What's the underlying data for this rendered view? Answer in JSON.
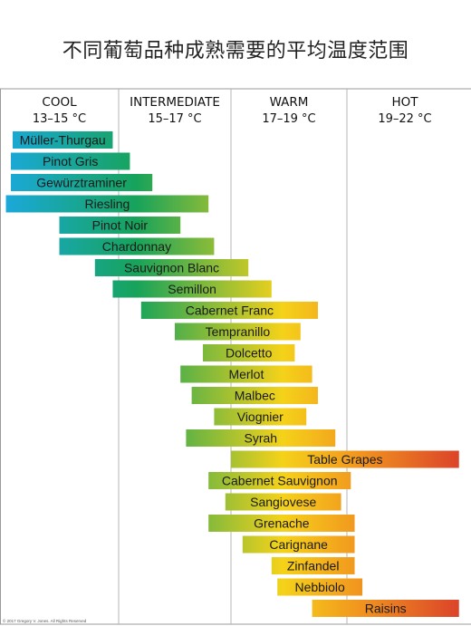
{
  "title": "不同葡萄品种成熟需要的平均温度范围",
  "copyright": "© 2017 Gregory V. Jones. All Rights Reserved",
  "chart_data": {
    "type": "bar",
    "orientation": "horizontal-range",
    "unit": "°C",
    "zones": [
      {
        "name": "COOL",
        "range_label": "13–15 °C",
        "from": 13,
        "to": 15
      },
      {
        "name": "INTERMEDIATE",
        "range_label": "15–17 °C",
        "from": 15,
        "to": 17
      },
      {
        "name": "WARM",
        "range_label": "17–19 °C",
        "from": 17,
        "to": 19
      },
      {
        "name": "HOT",
        "range_label": "19–22 °C",
        "from": 19,
        "to": 22
      }
    ],
    "xlim": [
      13,
      22
    ],
    "grid": "vertical lines at zone boundaries",
    "color_scale": [
      "#1aa9e0",
      "#17a35a",
      "#f5d21a",
      "#f29a1e",
      "#d93a2b"
    ],
    "varieties": [
      {
        "name": "Müller-Thurgau",
        "min": 13.0,
        "max": 14.9
      },
      {
        "name": "Pinot Gris",
        "min": 13.0,
        "max": 15.2
      },
      {
        "name": "Gewürztraminer",
        "min": 13.0,
        "max": 15.6
      },
      {
        "name": "Riesling",
        "min": 13.1,
        "max": 16.6
      },
      {
        "name": "Pinot Noir",
        "min": 14.0,
        "max": 16.1
      },
      {
        "name": "Chardonnay",
        "min": 14.0,
        "max": 16.7
      },
      {
        "name": "Sauvignon Blanc",
        "min": 14.6,
        "max": 17.3
      },
      {
        "name": "Semillon",
        "min": 14.9,
        "max": 17.7
      },
      {
        "name": "Cabernet Franc",
        "min": 15.4,
        "max": 18.5
      },
      {
        "name": "Tempranillo",
        "min": 16.0,
        "max": 18.2
      },
      {
        "name": "Dolcetto",
        "min": 16.5,
        "max": 18.1
      },
      {
        "name": "Merlot",
        "min": 16.1,
        "max": 18.4
      },
      {
        "name": "Malbec",
        "min": 16.3,
        "max": 18.5
      },
      {
        "name": "Viognier",
        "min": 16.7,
        "max": 18.3
      },
      {
        "name": "Syrah",
        "min": 16.2,
        "max": 18.8
      },
      {
        "name": "Table Grapes",
        "min": 17.0,
        "max": 21.9
      },
      {
        "name": "Cabernet Sauvignon",
        "min": 16.6,
        "max": 19.1
      },
      {
        "name": "Sangiovese",
        "min": 16.9,
        "max": 18.9
      },
      {
        "name": "Grenache",
        "min": 16.6,
        "max": 19.2
      },
      {
        "name": "Carignane",
        "min": 17.2,
        "max": 19.2
      },
      {
        "name": "Zinfandel",
        "min": 17.7,
        "max": 19.2
      },
      {
        "name": "Nebbiolo",
        "min": 17.8,
        "max": 19.4
      },
      {
        "name": "Raisins",
        "min": 18.4,
        "max": 21.9
      }
    ]
  }
}
